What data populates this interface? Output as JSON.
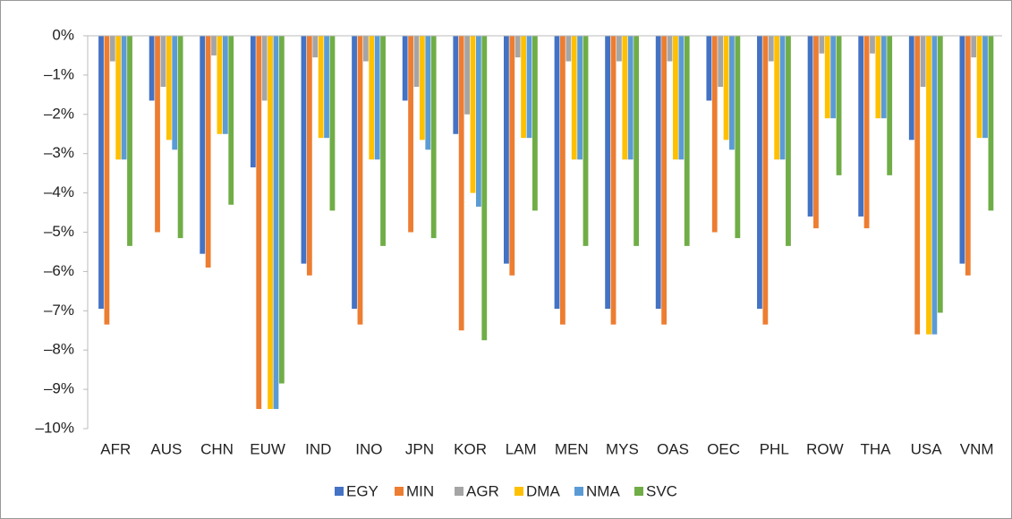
{
  "chart_data": {
    "type": "bar",
    "categories": [
      "AFR",
      "AUS",
      "CHN",
      "EUW",
      "IND",
      "INO",
      "JPN",
      "KOR",
      "LAM",
      "MEN",
      "MYS",
      "OAS",
      "OEC",
      "PHL",
      "ROW",
      "THA",
      "USA",
      "VNM"
    ],
    "series": [
      {
        "name": "EGY",
        "color": "#4472c4",
        "values": [
          -6.95,
          -1.65,
          -5.55,
          -3.35,
          -5.8,
          -6.95,
          -1.65,
          -2.5,
          -5.8,
          -6.95,
          -6.95,
          -6.95,
          -1.65,
          -6.95,
          -4.6,
          -4.6,
          -2.65,
          -5.8
        ]
      },
      {
        "name": "MIN",
        "color": "#ed7d31",
        "values": [
          -7.35,
          -5.0,
          -5.9,
          -9.5,
          -6.1,
          -7.35,
          -5.0,
          -7.5,
          -6.1,
          -7.35,
          -7.35,
          -7.35,
          -5.0,
          -7.35,
          -4.9,
          -4.9,
          -7.6,
          -6.1
        ]
      },
      {
        "name": "AGR",
        "color": "#a5a5a5",
        "values": [
          -0.65,
          -1.3,
          -0.5,
          -1.65,
          -0.55,
          -0.65,
          -1.3,
          -2.0,
          -0.55,
          -0.65,
          -0.65,
          -0.65,
          -1.3,
          -0.65,
          -0.45,
          -0.45,
          -1.3,
          -0.55
        ]
      },
      {
        "name": "DMA",
        "color": "#ffc000",
        "values": [
          -3.15,
          -2.65,
          -2.5,
          -9.5,
          -2.6,
          -3.15,
          -2.65,
          -4.0,
          -2.6,
          -3.15,
          -3.15,
          -3.15,
          -2.65,
          -3.15,
          -2.1,
          -2.1,
          -7.6,
          -2.6
        ]
      },
      {
        "name": "NMA",
        "color": "#5b9bd5",
        "values": [
          -3.15,
          -2.9,
          -2.5,
          -9.5,
          -2.6,
          -3.15,
          -2.9,
          -4.35,
          -2.6,
          -3.15,
          -3.15,
          -3.15,
          -2.9,
          -3.15,
          -2.1,
          -2.1,
          -7.6,
          -2.6
        ]
      },
      {
        "name": "SVC",
        "color": "#70ad47",
        "values": [
          -5.35,
          -5.15,
          -4.3,
          -8.85,
          -4.45,
          -5.35,
          -5.15,
          -7.75,
          -4.45,
          -5.35,
          -5.35,
          -5.35,
          -5.15,
          -5.35,
          -3.55,
          -3.55,
          -7.05,
          -4.45
        ]
      }
    ],
    "ylim": [
      -10,
      0
    ],
    "yticks": [
      {
        "value": 0,
        "label": "0%"
      },
      {
        "value": -1,
        "label": "–1%"
      },
      {
        "value": -2,
        "label": "–2%"
      },
      {
        "value": -3,
        "label": "–3%"
      },
      {
        "value": -4,
        "label": "–4%"
      },
      {
        "value": -5,
        "label": "–5%"
      },
      {
        "value": -6,
        "label": "–6%"
      },
      {
        "value": -7,
        "label": "–7%"
      },
      {
        "value": -8,
        "label": "–8%"
      },
      {
        "value": -9,
        "label": "–9%"
      },
      {
        "value": -10,
        "label": "–10%"
      }
    ],
    "legend": "bottom"
  }
}
